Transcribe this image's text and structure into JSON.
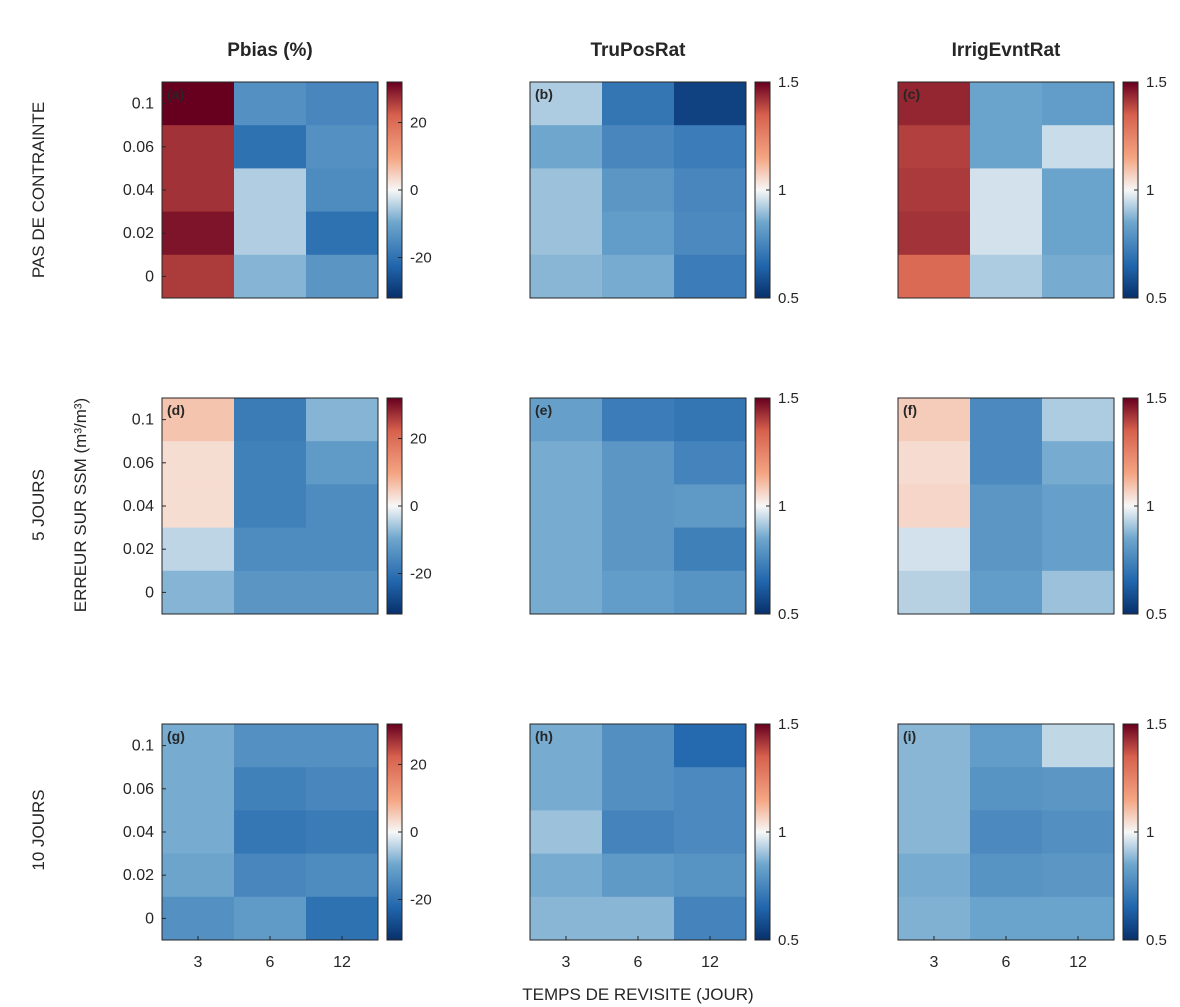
{
  "figure": {
    "ylabel": "ERREUR SUR SSM (m³/m³)",
    "xlabel": "TEMPS DE REVISITE (JOUR)",
    "col_titles": [
      "Pbias (%)",
      "TruPosRat",
      "IrrigEvntRat"
    ],
    "row_labels": [
      "PAS DE CONTRAINTE",
      "5 JOURS",
      "10 JOURS"
    ]
  },
  "chart_data": [
    {
      "type": "heatmap",
      "panel_label": "(a)",
      "title": "Pbias (%)",
      "row_label": "PAS DE CONTRAINTE",
      "categories_x": [
        "3",
        "6",
        "12"
      ],
      "categories_y": [
        "0.1",
        "0.06",
        "0.04",
        "0.02",
        "0"
      ],
      "values": [
        [
          32,
          -14,
          -16
        ],
        [
          27,
          -20,
          -14
        ],
        [
          27,
          -5,
          -15
        ],
        [
          30,
          -5,
          -20
        ],
        [
          26,
          -8,
          -13
        ]
      ],
      "clim": [
        -32,
        32
      ],
      "colorbar_ticks": [
        20,
        0,
        -20
      ],
      "colormap": "red-white-blue"
    },
    {
      "type": "heatmap",
      "panel_label": "(b)",
      "title": "TruPosRat",
      "row_label": "PAS DE CONTRAINTE",
      "categories_x": [
        "3",
        "6",
        "12"
      ],
      "categories_y": [
        "0.1",
        "0.06",
        "0.04",
        "0.02",
        "0"
      ],
      "values": [
        [
          0.92,
          0.7,
          0.55
        ],
        [
          0.85,
          0.75,
          0.72
        ],
        [
          0.9,
          0.8,
          0.75
        ],
        [
          0.9,
          0.82,
          0.76
        ],
        [
          0.88,
          0.86,
          0.72
        ]
      ],
      "clim": [
        0.5,
        1.5
      ],
      "colorbar_ticks": [
        1.5,
        1,
        0.5
      ],
      "colormap": "red-white-blue"
    },
    {
      "type": "heatmap",
      "panel_label": "(c)",
      "title": "IrrigEvntRat",
      "row_label": "PAS DE CONTRAINTE",
      "categories_x": [
        "3",
        "6",
        "12"
      ],
      "categories_y": [
        "0.1",
        "0.06",
        "0.04",
        "0.02",
        "0"
      ],
      "values": [
        [
          1.44,
          0.84,
          0.82
        ],
        [
          1.4,
          0.84,
          0.95
        ],
        [
          1.41,
          0.96,
          0.84
        ],
        [
          1.42,
          0.96,
          0.84
        ],
        [
          1.32,
          0.92,
          0.86
        ]
      ],
      "clim": [
        0.5,
        1.5
      ],
      "colorbar_ticks": [
        1.5,
        1,
        0.5
      ],
      "colormap": "red-white-blue"
    },
    {
      "type": "heatmap",
      "panel_label": "(d)",
      "title": "",
      "row_label": "5 JOURS",
      "categories_x": [
        "3",
        "6",
        "12"
      ],
      "categories_y": [
        "0.1",
        "0.06",
        "0.04",
        "0.02",
        "0"
      ],
      "values": [
        [
          6,
          -18,
          -8
        ],
        [
          3,
          -17,
          -12
        ],
        [
          3,
          -17,
          -15
        ],
        [
          -4,
          -15,
          -15
        ],
        [
          -8,
          -13,
          -13
        ]
      ],
      "clim": [
        -32,
        32
      ],
      "colorbar_ticks": [
        20,
        0,
        -20
      ],
      "colormap": "red-white-blue"
    },
    {
      "type": "heatmap",
      "panel_label": "(e)",
      "title": "",
      "row_label": "5 JOURS",
      "categories_x": [
        "3",
        "6",
        "12"
      ],
      "categories_y": [
        "0.1",
        "0.06",
        "0.04",
        "0.02",
        "0"
      ],
      "values": [
        [
          0.83,
          0.72,
          0.7
        ],
        [
          0.86,
          0.8,
          0.74
        ],
        [
          0.86,
          0.8,
          0.81
        ],
        [
          0.86,
          0.8,
          0.73
        ],
        [
          0.86,
          0.82,
          0.79
        ]
      ],
      "clim": [
        0.5,
        1.5
      ],
      "colorbar_ticks": [
        1.5,
        1,
        0.5
      ],
      "colormap": "red-white-blue"
    },
    {
      "type": "heatmap",
      "panel_label": "(f)",
      "title": "",
      "row_label": "5 JOURS",
      "categories_x": [
        "3",
        "6",
        "12"
      ],
      "categories_y": [
        "0.1",
        "0.06",
        "0.04",
        "0.02",
        "0"
      ],
      "values": [
        [
          1.08,
          0.76,
          0.92
        ],
        [
          1.05,
          0.76,
          0.86
        ],
        [
          1.06,
          0.8,
          0.83
        ],
        [
          0.96,
          0.8,
          0.83
        ],
        [
          0.93,
          0.82,
          0.9
        ]
      ],
      "clim": [
        0.5,
        1.5
      ],
      "colorbar_ticks": [
        1.5,
        1,
        0.5
      ],
      "colormap": "red-white-blue"
    },
    {
      "type": "heatmap",
      "panel_label": "(g)",
      "title": "",
      "row_label": "10 JOURS",
      "categories_x": [
        "3",
        "6",
        "12"
      ],
      "categories_y": [
        "0.1",
        "0.06",
        "0.04",
        "0.02",
        "0"
      ],
      "values": [
        [
          -9,
          -14,
          -14
        ],
        [
          -9,
          -17,
          -16
        ],
        [
          -9,
          -19,
          -18
        ],
        [
          -10,
          -16,
          -15
        ],
        [
          -14,
          -12,
          -20
        ]
      ],
      "clim": [
        -32,
        32
      ],
      "colorbar_ticks": [
        20,
        0,
        -20
      ],
      "colormap": "red-white-blue"
    },
    {
      "type": "heatmap",
      "panel_label": "(h)",
      "title": "",
      "row_label": "10 JOURS",
      "categories_x": [
        "3",
        "6",
        "12"
      ],
      "categories_y": [
        "0.1",
        "0.06",
        "0.04",
        "0.02",
        "0"
      ],
      "values": [
        [
          0.86,
          0.78,
          0.66
        ],
        [
          0.86,
          0.78,
          0.76
        ],
        [
          0.9,
          0.74,
          0.76
        ],
        [
          0.86,
          0.81,
          0.79
        ],
        [
          0.88,
          0.88,
          0.74
        ]
      ],
      "clim": [
        0.5,
        1.5
      ],
      "colorbar_ticks": [
        1.5,
        1,
        0.5
      ],
      "colormap": "red-white-blue"
    },
    {
      "type": "heatmap",
      "panel_label": "(i)",
      "title": "",
      "row_label": "10 JOURS",
      "categories_x": [
        "3",
        "6",
        "12"
      ],
      "categories_y": [
        "0.1",
        "0.06",
        "0.04",
        "0.02",
        "0"
      ],
      "values": [
        [
          0.88,
          0.82,
          0.94
        ],
        [
          0.88,
          0.79,
          0.8
        ],
        [
          0.88,
          0.76,
          0.78
        ],
        [
          0.86,
          0.79,
          0.8
        ],
        [
          0.87,
          0.84,
          0.84
        ]
      ],
      "clim": [
        0.5,
        1.5
      ],
      "colorbar_ticks": [
        1.5,
        1,
        0.5
      ],
      "colormap": "red-white-blue"
    }
  ]
}
